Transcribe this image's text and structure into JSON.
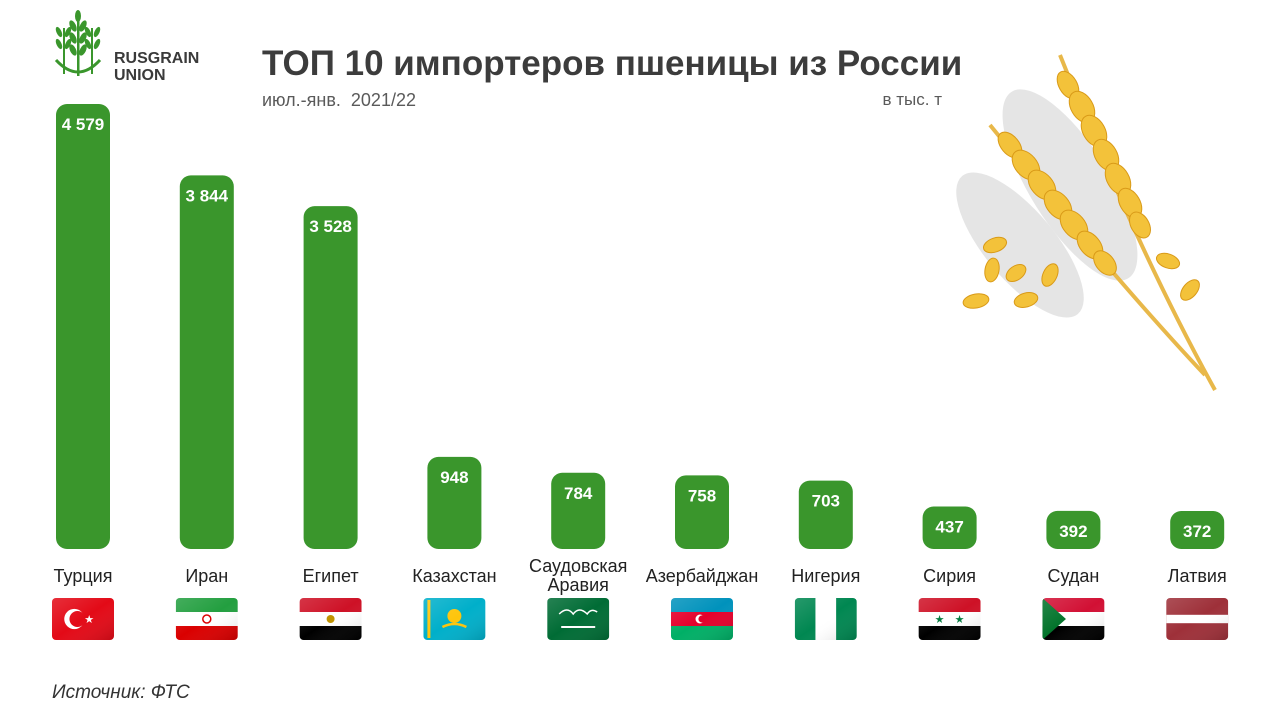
{
  "header": {
    "logo_line1": "RUSGRAIN",
    "logo_line2": "UNION",
    "title": "ТОП 10 импортеров пшеницы из России",
    "subtitle": "июл.-янв.  2021/22",
    "unit": "в тыс. т"
  },
  "source": "Источник: ФТС",
  "colors": {
    "bar": "#3a962c",
    "title": "#3c3c3c",
    "label": "#222222"
  },
  "chart_data": {
    "type": "bar",
    "title": "ТОП 10 импортеров пшеницы из России",
    "subtitle": "июл.-янв.  2021/22",
    "unit": "в тыс. т",
    "categories": [
      "Турция",
      "Иран",
      "Египет",
      "Казахстан",
      "Саудовская Аравия",
      "Азербайджан",
      "Нигерия",
      "Сирия",
      "Судан",
      "Латвия"
    ],
    "values": [
      4579,
      3844,
      3528,
      948,
      784,
      758,
      703,
      437,
      392,
      372
    ],
    "value_labels": [
      "4 579",
      "3 844",
      "3 528",
      "948",
      "784",
      "758",
      "703",
      "437",
      "392",
      "372"
    ],
    "flags": [
      "turkey-flag",
      "iran-flag",
      "egypt-flag",
      "kazakhstan-flag",
      "saudi-arabia-flag",
      "azerbaijan-flag",
      "nigeria-flag",
      "syria-flag",
      "sudan-flag",
      "latvia-flag"
    ],
    "ylim": [
      0,
      4579
    ],
    "grid": false,
    "legend": "none"
  }
}
